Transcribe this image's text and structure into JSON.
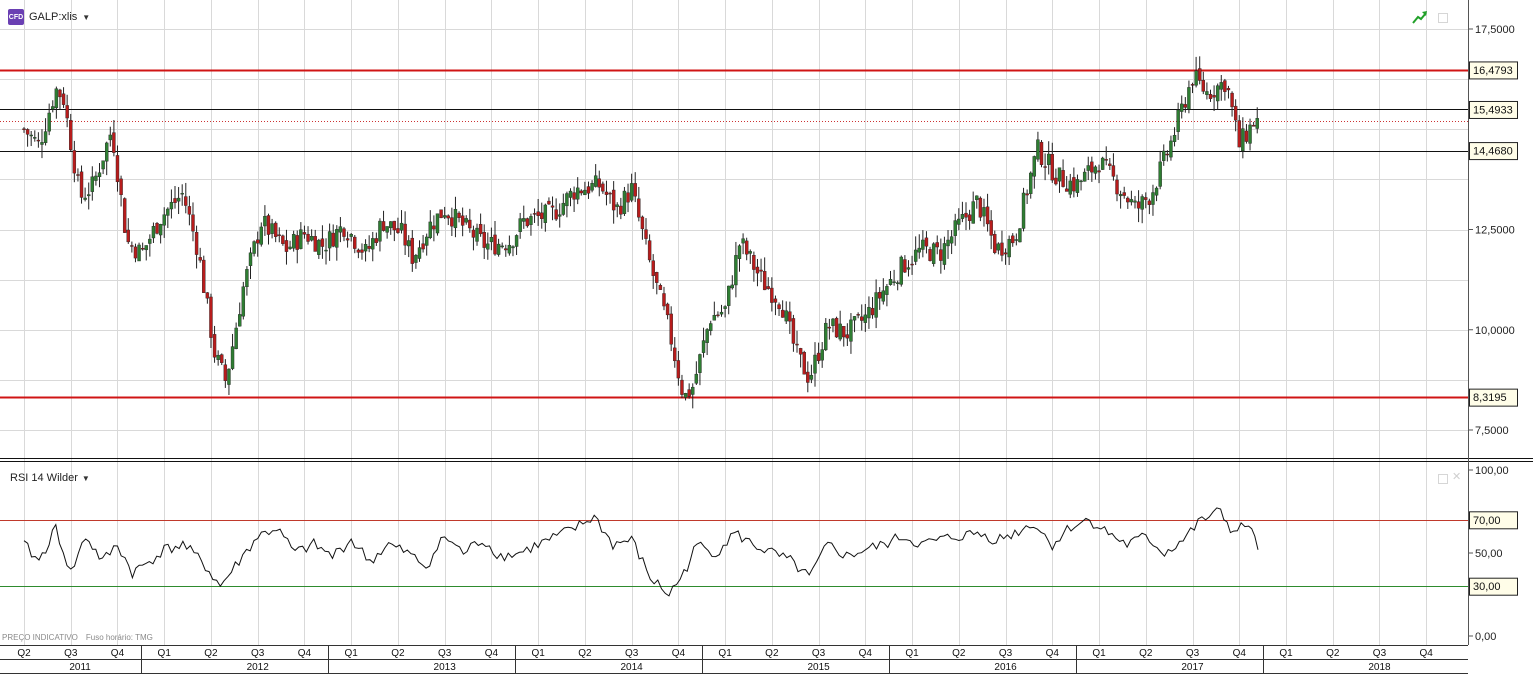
{
  "header": {
    "badge": "CFD",
    "symbol": "GALP:xlis",
    "rsi_label": "RSI 14 Wilder",
    "footer_price_note": "PREÇO INDICATIVO",
    "footer_tz_note": "Fuso horário: TMG"
  },
  "icons": {
    "badge_icon": "cfd-badge-icon",
    "trend_icon": "green-trend-arrow-icon",
    "dropdown": "chevron-down-icon",
    "maximize": "window-square-icon",
    "close": "close-icon"
  },
  "colors": {
    "up_candle": "#2e7d32",
    "down_candle": "#b71c1c",
    "support_resistance": "#d01414",
    "overbought_line": "#c0392b",
    "oversold_line": "#2e8b2e",
    "grid": "#d9d9d9",
    "label_tag_bg": "#fffde8"
  },
  "chart_data": [
    {
      "type": "candlestick",
      "title": "GALP:xlis",
      "ylim": [
        6.8,
        18.4
      ],
      "y_ticks": [
        "17,5000",
        "12,5000",
        "10,0000",
        "7,5000"
      ],
      "y_tick_values": [
        17.5,
        12.5,
        10.0,
        7.5
      ],
      "grid": true,
      "horizontal_lines": [
        {
          "value": 16.4793,
          "label": "16,4793",
          "style": "red"
        },
        {
          "value": 15.4933,
          "label": "15,4933",
          "style": "black"
        },
        {
          "value": 14.468,
          "label": "14,4680",
          "style": "black"
        },
        {
          "value": 8.3195,
          "label": "8,3195",
          "style": "red"
        }
      ],
      "x_range": [
        2011.25,
        2018.92
      ],
      "anchor_closes": [
        [
          2011.25,
          15.0
        ],
        [
          2011.33,
          14.6
        ],
        [
          2011.42,
          16.0
        ],
        [
          2011.46,
          15.8
        ],
        [
          2011.55,
          13.3
        ],
        [
          2011.62,
          13.6
        ],
        [
          2011.72,
          15.0
        ],
        [
          2011.8,
          12.2
        ],
        [
          2011.88,
          11.9
        ],
        [
          2011.98,
          12.8
        ],
        [
          2012.1,
          13.4
        ],
        [
          2012.18,
          12.0
        ],
        [
          2012.27,
          9.4
        ],
        [
          2012.33,
          8.7
        ],
        [
          2012.42,
          11.0
        ],
        [
          2012.52,
          12.7
        ],
        [
          2012.65,
          12.0
        ],
        [
          2012.75,
          12.4
        ],
        [
          2012.85,
          12.1
        ],
        [
          2012.96,
          12.6
        ],
        [
          2013.08,
          11.9
        ],
        [
          2013.17,
          12.7
        ],
        [
          2013.27,
          12.4
        ],
        [
          2013.33,
          11.8
        ],
        [
          2013.42,
          12.6
        ],
        [
          2013.5,
          13.0
        ],
        [
          2013.62,
          12.5
        ],
        [
          2013.72,
          12.1
        ],
        [
          2013.85,
          12.2
        ],
        [
          2013.92,
          12.7
        ],
        [
          2014.08,
          12.9
        ],
        [
          2014.2,
          13.5
        ],
        [
          2014.33,
          13.6
        ],
        [
          2014.42,
          13.0
        ],
        [
          2014.5,
          13.5
        ],
        [
          2014.6,
          11.6
        ],
        [
          2014.7,
          10.0
        ],
        [
          2014.78,
          8.3
        ],
        [
          2014.83,
          8.6
        ],
        [
          2014.92,
          10.3
        ],
        [
          2015.0,
          10.5
        ],
        [
          2015.08,
          12.2
        ],
        [
          2015.2,
          11.2
        ],
        [
          2015.3,
          10.7
        ],
        [
          2015.38,
          9.4
        ],
        [
          2015.45,
          8.8
        ],
        [
          2015.55,
          10.1
        ],
        [
          2015.65,
          9.9
        ],
        [
          2015.75,
          10.3
        ],
        [
          2015.85,
          11.0
        ],
        [
          2015.95,
          11.6
        ],
        [
          2016.05,
          12.0
        ],
        [
          2016.15,
          11.9
        ],
        [
          2016.25,
          12.6
        ],
        [
          2016.35,
          13.2
        ],
        [
          2016.45,
          12.0
        ],
        [
          2016.55,
          12.3
        ],
        [
          2016.67,
          14.5
        ],
        [
          2016.78,
          13.8
        ],
        [
          2016.88,
          13.6
        ],
        [
          2017.0,
          14.2
        ],
        [
          2017.1,
          13.6
        ],
        [
          2017.2,
          13.0
        ],
        [
          2017.28,
          13.4
        ],
        [
          2017.38,
          14.6
        ],
        [
          2017.5,
          16.3
        ],
        [
          2017.58,
          15.9
        ],
        [
          2017.68,
          16.2
        ],
        [
          2017.75,
          14.6
        ],
        [
          2017.83,
          15.2
        ]
      ],
      "x_axis": {
        "quarters": [
          {
            "label": "Q2",
            "x": 2011.25
          },
          {
            "label": "Q3",
            "x": 2011.5
          },
          {
            "label": "Q4",
            "x": 2011.75
          },
          {
            "label": "Q1",
            "x": 2012.0
          },
          {
            "label": "Q2",
            "x": 2012.25
          },
          {
            "label": "Q3",
            "x": 2012.5
          },
          {
            "label": "Q4",
            "x": 2012.75
          },
          {
            "label": "Q1",
            "x": 2013.0
          },
          {
            "label": "Q2",
            "x": 2013.25
          },
          {
            "label": "Q3",
            "x": 2013.5
          },
          {
            "label": "Q4",
            "x": 2013.75
          },
          {
            "label": "Q1",
            "x": 2014.0
          },
          {
            "label": "Q2",
            "x": 2014.25
          },
          {
            "label": "Q3",
            "x": 2014.5
          },
          {
            "label": "Q4",
            "x": 2014.75
          },
          {
            "label": "Q1",
            "x": 2015.0
          },
          {
            "label": "Q2",
            "x": 2015.25
          },
          {
            "label": "Q3",
            "x": 2015.5
          },
          {
            "label": "Q4",
            "x": 2015.75
          },
          {
            "label": "Q1",
            "x": 2016.0
          },
          {
            "label": "Q2",
            "x": 2016.25
          },
          {
            "label": "Q3",
            "x": 2016.5
          },
          {
            "label": "Q4",
            "x": 2016.75
          },
          {
            "label": "Q1",
            "x": 2017.0
          },
          {
            "label": "Q2",
            "x": 2017.25
          },
          {
            "label": "Q3",
            "x": 2017.5
          },
          {
            "label": "Q4",
            "x": 2017.75
          },
          {
            "label": "Q1",
            "x": 2018.0
          },
          {
            "label": "Q2",
            "x": 2018.25
          },
          {
            "label": "Q3",
            "x": 2018.5
          },
          {
            "label": "Q4",
            "x": 2018.75
          }
        ],
        "years": [
          {
            "label": "2011",
            "x": 2011.55
          },
          {
            "label": "2012",
            "x": 2012.5
          },
          {
            "label": "2013",
            "x": 2013.5
          },
          {
            "label": "2014",
            "x": 2014.5
          },
          {
            "label": "2015",
            "x": 2015.5
          },
          {
            "label": "2016",
            "x": 2016.5
          },
          {
            "label": "2017",
            "x": 2017.5
          },
          {
            "label": "2018",
            "x": 2018.5
          }
        ],
        "year_starts": [
          2012.0,
          2013.0,
          2014.0,
          2015.0,
          2016.0,
          2017.0,
          2018.0
        ]
      }
    },
    {
      "type": "line",
      "title": "RSI 14 Wilder",
      "ylim": [
        0,
        100
      ],
      "y_ticks": [
        "100,00",
        "50,00",
        "0,00"
      ],
      "y_tick_values": [
        100,
        50,
        0
      ],
      "horizontal_lines": [
        {
          "value": 70,
          "label": "70,00",
          "style": "red"
        },
        {
          "value": 30,
          "label": "30,00",
          "style": "green"
        }
      ],
      "x": [
        2011.25,
        2011.33,
        2011.42,
        2011.5,
        2011.58,
        2011.67,
        2011.75,
        2011.83,
        2011.92,
        2012.0,
        2012.1,
        2012.2,
        2012.3,
        2012.4,
        2012.5,
        2012.6,
        2012.7,
        2012.8,
        2012.9,
        2013.0,
        2013.1,
        2013.2,
        2013.3,
        2013.4,
        2013.5,
        2013.6,
        2013.7,
        2013.8,
        2013.9,
        2014.0,
        2014.1,
        2014.2,
        2014.3,
        2014.4,
        2014.5,
        2014.6,
        2014.7,
        2014.78,
        2014.85,
        2014.95,
        2015.05,
        2015.15,
        2015.25,
        2015.35,
        2015.45,
        2015.55,
        2015.65,
        2015.75,
        2015.85,
        2015.95,
        2016.05,
        2016.15,
        2016.25,
        2016.35,
        2016.45,
        2016.55,
        2016.65,
        2016.75,
        2016.85,
        2016.95,
        2017.05,
        2017.15,
        2017.25,
        2017.35,
        2017.45,
        2017.55,
        2017.65,
        2017.72,
        2017.8,
        2017.85
      ],
      "values": [
        55,
        45,
        65,
        38,
        60,
        45,
        55,
        38,
        45,
        52,
        55,
        45,
        30,
        45,
        60,
        65,
        50,
        55,
        48,
        58,
        45,
        55,
        50,
        42,
        60,
        50,
        58,
        48,
        50,
        55,
        60,
        65,
        72,
        55,
        58,
        35,
        25,
        38,
        55,
        50,
        62,
        55,
        50,
        45,
        35,
        55,
        48,
        52,
        55,
        60,
        55,
        58,
        60,
        62,
        58,
        62,
        68,
        55,
        66,
        70,
        62,
        55,
        60,
        50,
        58,
        70,
        75,
        62,
        68,
        52
      ]
    }
  ]
}
